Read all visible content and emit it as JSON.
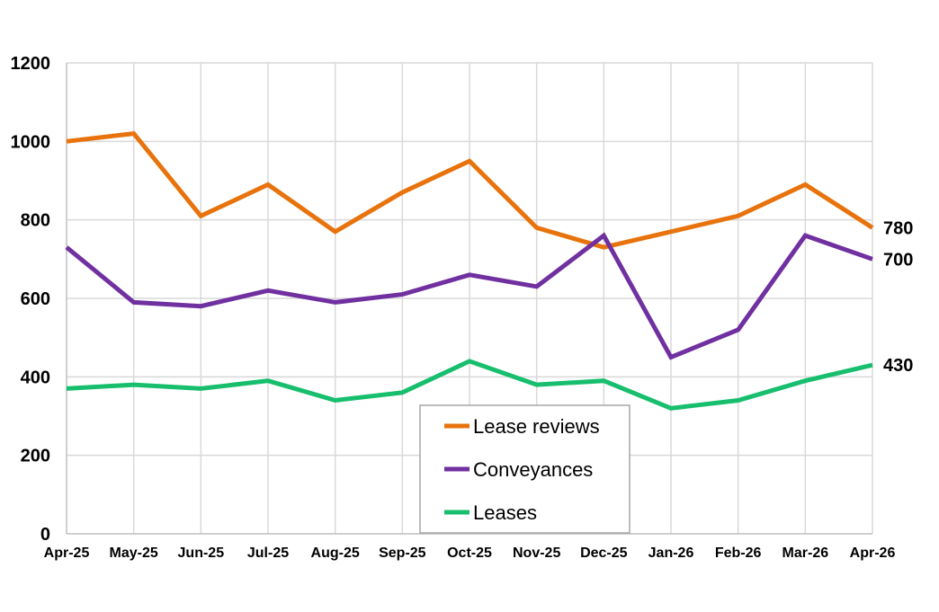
{
  "chart_data": {
    "type": "line",
    "categories": [
      "Apr-25",
      "May-25",
      "Jun-25",
      "Jul-25",
      "Aug-25",
      "Sep-25",
      "Oct-25",
      "Nov-25",
      "Dec-25",
      "Jan-26",
      "Feb-26",
      "Mar-26",
      "Apr-26"
    ],
    "series": [
      {
        "name": "Lease reviews",
        "color": "#E8730C",
        "values": [
          1000,
          1020,
          810,
          890,
          770,
          870,
          950,
          780,
          730,
          770,
          810,
          890,
          780
        ],
        "end_label": "780"
      },
      {
        "name": "Conveyances",
        "color": "#7030A0",
        "values": [
          730,
          590,
          580,
          620,
          590,
          610,
          660,
          630,
          760,
          450,
          520,
          760,
          700
        ],
        "end_label": "700"
      },
      {
        "name": "Leases",
        "color": "#17BE6D",
        "values": [
          370,
          380,
          370,
          390,
          340,
          360,
          440,
          380,
          390,
          320,
          340,
          390,
          430
        ],
        "end_label": "430"
      }
    ],
    "y_ticks": [
      "0",
      "200",
      "400",
      "600",
      "800",
      "1000",
      "1200"
    ],
    "ylim": [
      0,
      1200
    ],
    "grid": true,
    "legend_position": "bottom-center"
  }
}
